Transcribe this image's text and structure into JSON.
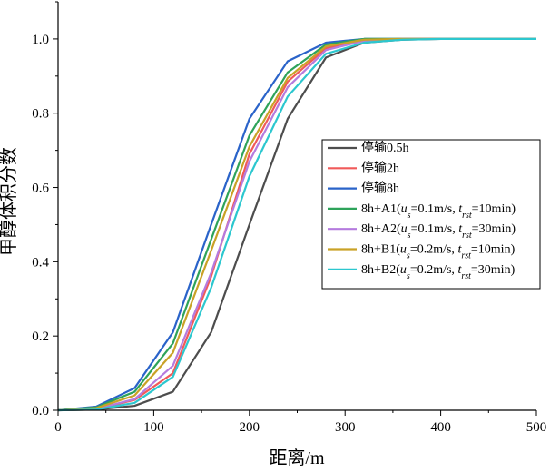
{
  "chart_data": {
    "type": "line",
    "title": "",
    "xlabel": "距离/m",
    "ylabel": "甲醇体积分数",
    "xlim": [
      0,
      500
    ],
    "ylim": [
      0,
      1.1
    ],
    "xticks": [
      0,
      100,
      200,
      300,
      400,
      500
    ],
    "yticks": [
      0.0,
      0.2,
      0.4,
      0.6,
      0.8,
      1.0
    ],
    "ytick_labels": [
      "0.0",
      "0.2",
      "0.4",
      "0.6",
      "0.8",
      "1.0"
    ],
    "grid": false,
    "legend_position": "center-right",
    "x": [
      0,
      40,
      80,
      120,
      160,
      200,
      240,
      280,
      320,
      360,
      400,
      440,
      480,
      500
    ],
    "series": [
      {
        "name": "停输0.5h",
        "legend_parts": [
          {
            "t": "停输0.5h",
            "s": "n"
          }
        ],
        "color": "#4d4d4d",
        "values": [
          0,
          0.002,
          0.012,
          0.05,
          0.21,
          0.5,
          0.785,
          0.95,
          0.99,
          0.998,
          1.0,
          1.0,
          1.0,
          1.0
        ]
      },
      {
        "name": "停输2h",
        "legend_parts": [
          {
            "t": "停输2h",
            "s": "n"
          }
        ],
        "color": "#f05a5a",
        "values": [
          0,
          0.003,
          0.028,
          0.1,
          0.36,
          0.69,
          0.885,
          0.975,
          0.997,
          1.0,
          1.0,
          1.0,
          1.0,
          1.0
        ]
      },
      {
        "name": "停输8h",
        "legend_parts": [
          {
            "t": "停输8h",
            "s": "n"
          }
        ],
        "color": "#2a63c9",
        "values": [
          0,
          0.01,
          0.06,
          0.21,
          0.5,
          0.785,
          0.94,
          0.99,
          1.0,
          1.0,
          1.0,
          1.0,
          1.0,
          1.0
        ]
      },
      {
        "name": "8h+A1(us=0.1m/s, trst=10min)",
        "legend_parts": [
          {
            "t": "8h+A1(",
            "s": "n"
          },
          {
            "t": "u",
            "s": "i"
          },
          {
            "t": "s",
            "s": "sub"
          },
          {
            "t": "=0.1m/s, ",
            "s": "n"
          },
          {
            "t": "t",
            "s": "i"
          },
          {
            "t": "rst",
            "s": "sub"
          },
          {
            "t": "=10min)",
            "s": "n"
          }
        ],
        "color": "#2ea35a",
        "values": [
          0,
          0.008,
          0.05,
          0.18,
          0.46,
          0.74,
          0.91,
          0.985,
          1.0,
          1.0,
          1.0,
          1.0,
          1.0,
          1.0
        ]
      },
      {
        "name": "8h+A2(us=0.1m/s, trst=30min)",
        "legend_parts": [
          {
            "t": "8h+A2(",
            "s": "n"
          },
          {
            "t": "u",
            "s": "i"
          },
          {
            "t": "s",
            "s": "sub"
          },
          {
            "t": "=0.1m/s, ",
            "s": "n"
          },
          {
            "t": "t",
            "s": "i"
          },
          {
            "t": "rst",
            "s": "sub"
          },
          {
            "t": "=30min)",
            "s": "n"
          }
        ],
        "color": "#b57bde",
        "values": [
          0,
          0.004,
          0.03,
          0.12,
          0.37,
          0.67,
          0.87,
          0.97,
          0.995,
          1.0,
          1.0,
          1.0,
          1.0,
          1.0
        ]
      },
      {
        "name": "8h+B1(us=0.2m/s, trst=10min)",
        "legend_parts": [
          {
            "t": "8h+B1(",
            "s": "n"
          },
          {
            "t": "u",
            "s": "i"
          },
          {
            "t": "s",
            "s": "sub"
          },
          {
            "t": "=0.2m/s, ",
            "s": "n"
          },
          {
            "t": "t",
            "s": "i"
          },
          {
            "t": "rst",
            "s": "sub"
          },
          {
            "t": "=10min)",
            "s": "n"
          }
        ],
        "color": "#c9a227",
        "values": [
          0,
          0.006,
          0.04,
          0.155,
          0.43,
          0.71,
          0.895,
          0.98,
          0.998,
          1.0,
          1.0,
          1.0,
          1.0,
          1.0
        ]
      },
      {
        "name": "8h+B2(us=0.2m/s, trst=30min)",
        "legend_parts": [
          {
            "t": "8h+B2(",
            "s": "n"
          },
          {
            "t": "u",
            "s": "i"
          },
          {
            "t": "s",
            "s": "sub"
          },
          {
            "t": "=0.2m/s, ",
            "s": "n"
          },
          {
            "t": "t",
            "s": "i"
          },
          {
            "t": "rst",
            "s": "sub"
          },
          {
            "t": "=30min)",
            "s": "n"
          }
        ],
        "color": "#2cc7cf",
        "values": [
          0,
          0.002,
          0.02,
          0.09,
          0.33,
          0.63,
          0.845,
          0.96,
          0.99,
          0.998,
          1.0,
          1.0,
          1.0,
          1.0
        ]
      }
    ]
  }
}
